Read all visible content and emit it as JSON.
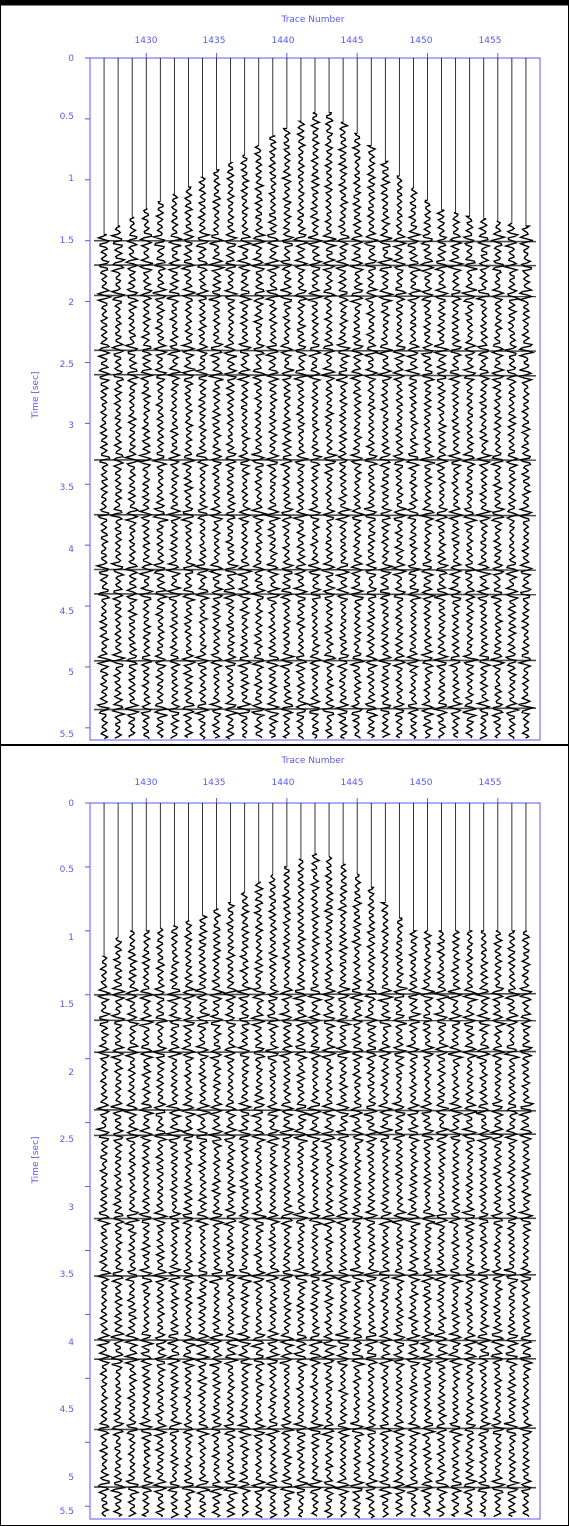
{
  "colors": {
    "axis": "#5a5af0",
    "trace": "#000000",
    "frame": "#000000",
    "background": "#ffffff"
  },
  "chart_data": [
    {
      "type": "seismic-wiggle",
      "xlabel": "Trace Number",
      "ylabel": "Time [sec]",
      "x_ticks": [
        "1430",
        "1435",
        "1440",
        "1445",
        "1450",
        "1455"
      ],
      "y_ticks": [
        "0",
        "0.5",
        "1",
        "1.5",
        "2",
        "2.5",
        "3",
        "3.5",
        "4",
        "4.5",
        "5",
        "5.5"
      ],
      "xlim": [
        1426,
        1458
      ],
      "ylim": [
        0,
        5.6
      ],
      "grid": false,
      "traces": [
        1427,
        1428,
        1429,
        1430,
        1431,
        1432,
        1433,
        1434,
        1435,
        1436,
        1437,
        1438,
        1439,
        1440,
        1441,
        1442,
        1443,
        1444,
        1445,
        1446,
        1447,
        1448,
        1449,
        1450,
        1451,
        1452,
        1453,
        1454,
        1455,
        1456,
        1457
      ],
      "first_arrival_sec": [
        1.45,
        1.38,
        1.31,
        1.24,
        1.18,
        1.12,
        1.06,
        0.98,
        0.92,
        0.86,
        0.8,
        0.72,
        0.64,
        0.58,
        0.52,
        0.45,
        0.45,
        0.53,
        0.62,
        0.72,
        0.85,
        0.97,
        1.07,
        1.17,
        1.25,
        1.27,
        1.3,
        1.32,
        1.34,
        1.36,
        1.38
      ],
      "reflector_times_sec": [
        1.5,
        1.7,
        1.95,
        2.4,
        2.6,
        3.3,
        3.75,
        4.2,
        4.4,
        4.95,
        5.35
      ]
    },
    {
      "type": "seismic-wiggle",
      "xlabel": "Trace Number",
      "ylabel": "Time [sec]",
      "x_ticks": [
        "1430",
        "1435",
        "1440",
        "1445",
        "1450",
        "1455"
      ],
      "y_ticks": [
        "0",
        "0.5",
        "1",
        "1.5",
        "2",
        "2.5",
        "3",
        "3.5",
        "4",
        "4.5",
        "5",
        "5.5"
      ],
      "xlim": [
        1426,
        1458
      ],
      "ylim": [
        0,
        5.6
      ],
      "grid": false,
      "traces": [
        1427,
        1428,
        1429,
        1430,
        1431,
        1432,
        1433,
        1434,
        1435,
        1436,
        1437,
        1438,
        1439,
        1440,
        1441,
        1442,
        1443,
        1444,
        1445,
        1446,
        1447,
        1448,
        1449,
        1450,
        1451,
        1452,
        1453,
        1454,
        1455,
        1456,
        1457
      ],
      "first_arrival_sec": [
        1.2,
        1.05,
        1.0,
        1.0,
        0.98,
        0.96,
        0.92,
        0.88,
        0.83,
        0.78,
        0.7,
        0.62,
        0.56,
        0.5,
        0.44,
        0.4,
        0.42,
        0.48,
        0.56,
        0.66,
        0.78,
        0.9,
        1.0,
        1.0,
        1.0,
        1.0,
        1.0,
        1.0,
        1.0,
        1.0,
        1.0
      ],
      "reflector_times_sec": [
        1.5,
        1.7,
        1.95,
        2.4,
        2.6,
        3.25,
        3.7,
        4.2,
        4.35,
        4.9,
        5.35
      ]
    }
  ]
}
